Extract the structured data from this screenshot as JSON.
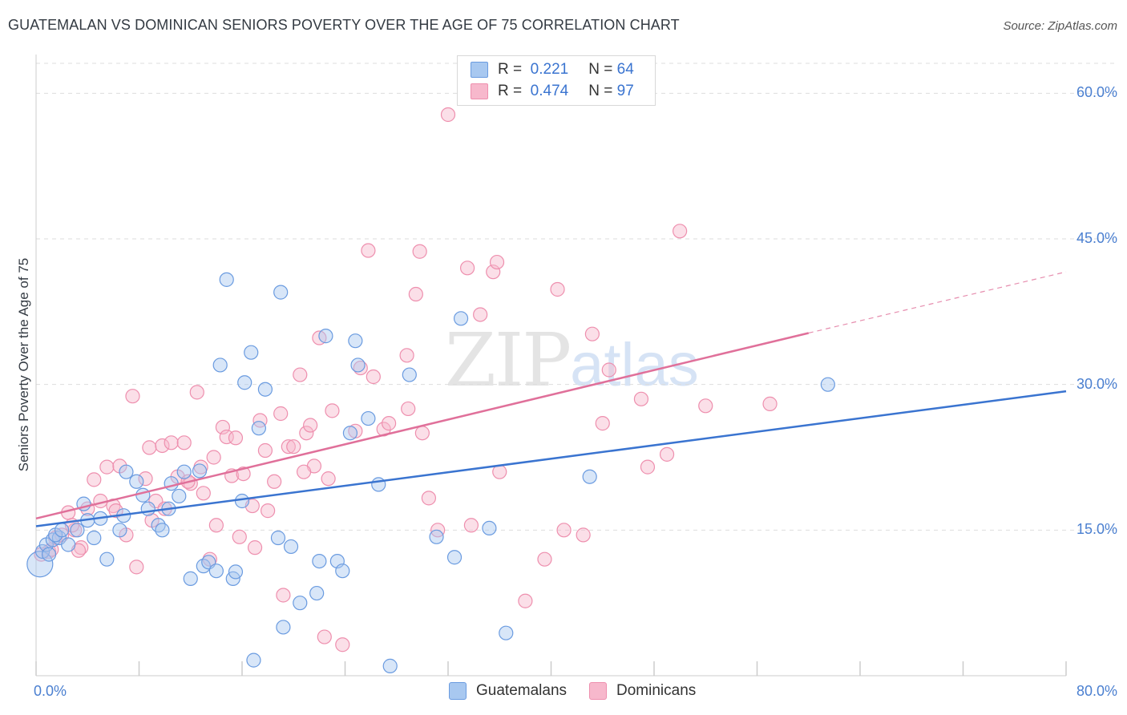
{
  "title": "GUATEMALAN VS DOMINICAN SENIORS POVERTY OVER THE AGE OF 75 CORRELATION CHART",
  "source": "Source: ZipAtlas.com",
  "watermark": {
    "zip": "ZIP",
    "atlas": "atlas"
  },
  "legend": {
    "rows": [
      {
        "r_label": "R =",
        "r_value": "0.221",
        "n_label": "N =",
        "n_value": "64"
      },
      {
        "r_label": "R =",
        "r_value": "0.474",
        "n_label": "N =",
        "n_value": "97"
      }
    ]
  },
  "bottom_legend": [
    "Guatemalans",
    "Dominicans"
  ],
  "colors": {
    "guatemalan_fill": "#a8c8f0",
    "guatemalan_stroke": "#6a9be0",
    "guatemalan_line": "#3a74d0",
    "dominican_fill": "#f7b8cc",
    "dominican_stroke": "#ee8fae",
    "dominican_line": "#e0709a",
    "tick_text": "#4a7fd0",
    "grid": "#dddddd"
  },
  "chart_data": {
    "type": "scatter",
    "title": "GUATEMALAN VS DOMINICAN SENIORS POVERTY OVER THE AGE OF 75 CORRELATION CHART",
    "xlabel": "",
    "ylabel": "Seniors Poverty Over the Age of 75",
    "xlim": [
      0,
      80
    ],
    "ylim": [
      0,
      63
    ],
    "x_tick_labels": [
      "0.0%",
      "80.0%"
    ],
    "y_ticks": [
      15,
      30,
      45,
      60
    ],
    "y_tick_labels": [
      "15.0%",
      "30.0%",
      "45.0%",
      "60.0%"
    ],
    "grid": true,
    "legend_placement": "top-center",
    "series": [
      {
        "name": "Guatemalans",
        "r": 0.221,
        "n": 64,
        "trend": {
          "x": [
            0,
            80
          ],
          "y": [
            15.4,
            29.3
          ]
        },
        "points": [
          [
            0.3,
            11.5
          ],
          [
            0.5,
            12.8
          ],
          [
            0.8,
            13.5
          ],
          [
            1.0,
            12.5
          ],
          [
            1.3,
            14.0
          ],
          [
            1.8,
            14.2
          ],
          [
            2.5,
            13.5
          ],
          [
            3.2,
            15.0
          ],
          [
            3.7,
            17.7
          ],
          [
            4.5,
            14.2
          ],
          [
            5.0,
            16.2
          ],
          [
            5.5,
            12.0
          ],
          [
            6.5,
            15.0
          ],
          [
            6.8,
            16.5
          ],
          [
            7.8,
            20.0
          ],
          [
            8.3,
            18.6
          ],
          [
            8.7,
            17.2
          ],
          [
            9.5,
            15.5
          ],
          [
            9.8,
            15.0
          ],
          [
            10.3,
            17.2
          ],
          [
            10.5,
            19.8
          ],
          [
            11.1,
            18.5
          ],
          [
            11.5,
            21.0
          ],
          [
            12.0,
            10.0
          ],
          [
            12.7,
            21.1
          ],
          [
            13.0,
            11.3
          ],
          [
            13.4,
            11.7
          ],
          [
            14.0,
            10.8
          ],
          [
            14.3,
            32.0
          ],
          [
            14.8,
            40.8
          ],
          [
            15.3,
            10.0
          ],
          [
            15.5,
            10.7
          ],
          [
            16.2,
            30.2
          ],
          [
            16.7,
            33.3
          ],
          [
            16.9,
            1.6
          ],
          [
            17.3,
            25.5
          ],
          [
            17.8,
            29.5
          ],
          [
            18.8,
            14.2
          ],
          [
            19.0,
            39.5
          ],
          [
            19.2,
            5.0
          ],
          [
            19.8,
            13.3
          ],
          [
            20.5,
            7.5
          ],
          [
            21.8,
            8.5
          ],
          [
            22.0,
            11.8
          ],
          [
            22.5,
            35.0
          ],
          [
            23.4,
            11.8
          ],
          [
            23.8,
            10.8
          ],
          [
            24.8,
            34.5
          ],
          [
            25.0,
            32.0
          ],
          [
            25.8,
            26.5
          ],
          [
            26.6,
            19.7
          ],
          [
            27.5,
            1.0
          ],
          [
            29.0,
            31.0
          ],
          [
            31.1,
            14.3
          ],
          [
            32.5,
            12.2
          ],
          [
            33.0,
            36.8
          ],
          [
            35.2,
            15.2
          ],
          [
            36.5,
            4.4
          ],
          [
            43.0,
            20.5
          ],
          [
            61.5,
            30.0
          ],
          [
            1.5,
            14.5
          ],
          [
            2.0,
            15.0
          ],
          [
            4.0,
            16.0
          ],
          [
            7.0,
            21.0
          ],
          [
            24.4,
            25.0
          ],
          [
            16.0,
            18.0
          ]
        ]
      },
      {
        "name": "Dominicans",
        "r": 0.474,
        "n": 97,
        "trend": {
          "x": [
            0,
            60
          ],
          "y": [
            16.2,
            35.3
          ]
        },
        "trend_dashed": {
          "x": [
            60,
            80
          ],
          "y": [
            35.3,
            41.6
          ]
        },
        "points": [
          [
            0.4,
            12.5
          ],
          [
            1.0,
            12.8
          ],
          [
            1.5,
            14.2
          ],
          [
            2.0,
            14.5
          ],
          [
            2.5,
            16.8
          ],
          [
            3.0,
            15.0
          ],
          [
            3.5,
            13.2
          ],
          [
            4.0,
            17.2
          ],
          [
            4.5,
            20.2
          ],
          [
            5.0,
            18.0
          ],
          [
            5.5,
            21.5
          ],
          [
            6.0,
            17.5
          ],
          [
            6.5,
            21.6
          ],
          [
            7.0,
            14.5
          ],
          [
            7.5,
            28.8
          ],
          [
            7.8,
            11.2
          ],
          [
            8.5,
            20.3
          ],
          [
            8.8,
            23.5
          ],
          [
            9.3,
            18.0
          ],
          [
            9.8,
            23.7
          ],
          [
            10.0,
            17.2
          ],
          [
            10.5,
            24.0
          ],
          [
            11.0,
            20.5
          ],
          [
            11.5,
            24.0
          ],
          [
            12.0,
            19.8
          ],
          [
            12.5,
            29.2
          ],
          [
            12.8,
            21.5
          ],
          [
            13.0,
            18.8
          ],
          [
            13.5,
            12.0
          ],
          [
            14.0,
            15.5
          ],
          [
            14.5,
            25.6
          ],
          [
            14.8,
            24.6
          ],
          [
            15.2,
            20.6
          ],
          [
            15.5,
            24.5
          ],
          [
            15.8,
            14.3
          ],
          [
            16.1,
            20.8
          ],
          [
            16.8,
            17.5
          ],
          [
            17.4,
            26.3
          ],
          [
            17.8,
            23.2
          ],
          [
            18.5,
            20.0
          ],
          [
            19.0,
            27.0
          ],
          [
            19.2,
            8.3
          ],
          [
            19.6,
            23.6
          ],
          [
            20.0,
            23.6
          ],
          [
            20.5,
            31.0
          ],
          [
            21.0,
            25.0
          ],
          [
            21.3,
            25.8
          ],
          [
            21.6,
            21.6
          ],
          [
            22.0,
            34.8
          ],
          [
            22.4,
            4.0
          ],
          [
            23.0,
            27.3
          ],
          [
            23.8,
            3.2
          ],
          [
            24.8,
            25.2
          ],
          [
            25.2,
            31.7
          ],
          [
            25.8,
            43.8
          ],
          [
            27.0,
            25.4
          ],
          [
            27.4,
            26.0
          ],
          [
            28.8,
            33.0
          ],
          [
            28.9,
            27.5
          ],
          [
            29.5,
            39.3
          ],
          [
            29.8,
            43.7
          ],
          [
            30.5,
            18.3
          ],
          [
            31.2,
            15.0
          ],
          [
            32.0,
            57.8
          ],
          [
            33.5,
            42.0
          ],
          [
            33.8,
            15.5
          ],
          [
            34.5,
            37.2
          ],
          [
            35.5,
            41.6
          ],
          [
            35.8,
            42.6
          ],
          [
            38.0,
            7.7
          ],
          [
            39.5,
            12.0
          ],
          [
            40.5,
            39.8
          ],
          [
            41.0,
            15.0
          ],
          [
            42.5,
            14.5
          ],
          [
            43.2,
            35.2
          ],
          [
            44.0,
            26.0
          ],
          [
            44.5,
            31.5
          ],
          [
            47.0,
            28.5
          ],
          [
            47.5,
            21.5
          ],
          [
            49.0,
            22.8
          ],
          [
            50.0,
            45.8
          ],
          [
            52.0,
            27.8
          ],
          [
            57.0,
            28.0
          ],
          [
            1.2,
            13.0
          ],
          [
            2.8,
            15.5
          ],
          [
            3.3,
            12.9
          ],
          [
            6.2,
            17.0
          ],
          [
            9.0,
            16.0
          ],
          [
            11.8,
            20.0
          ],
          [
            13.8,
            22.5
          ],
          [
            17.0,
            13.2
          ],
          [
            18.0,
            17.0
          ],
          [
            20.8,
            21.0
          ],
          [
            22.7,
            20.3
          ],
          [
            26.2,
            30.8
          ],
          [
            30.0,
            25.0
          ],
          [
            36.0,
            21.0
          ]
        ]
      }
    ]
  }
}
